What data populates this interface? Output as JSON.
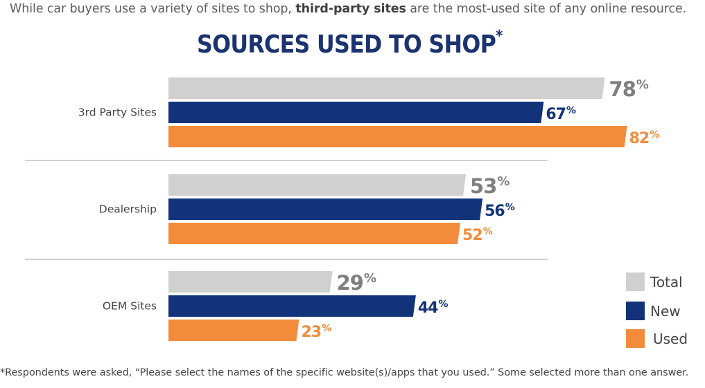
{
  "intro": {
    "before": "While car buyers use a variety of sites to shop, ",
    "bold": "third-party sites",
    "after": " are the most-used site of any online resource."
  },
  "footnote": "*Respondents were asked, “Please select the names of the specific website(s)/apps that you used.” Some selected more than one answer.",
  "colors": {
    "total": "#d0d0d0",
    "new": "#12337a",
    "used": "#f28c3c",
    "total_label": "#7f7f7f",
    "new_label": "#12337a",
    "used_label": "#f28c3c"
  },
  "chart_data": {
    "type": "bar",
    "orientation": "horizontal",
    "title": "SOURCES USED TO SHOP",
    "title_mark": "*",
    "categories": [
      "3rd Party Sites",
      "Dealership",
      "OEM Sites"
    ],
    "series": [
      {
        "name": "Total",
        "values": [
          78,
          53,
          29
        ]
      },
      {
        "name": "New",
        "values": [
          67,
          56,
          44
        ]
      },
      {
        "name": "Used",
        "values": [
          82,
          52,
          23
        ]
      }
    ],
    "unit": "%",
    "xlim": [
      0,
      100
    ],
    "legend_position": "right"
  }
}
